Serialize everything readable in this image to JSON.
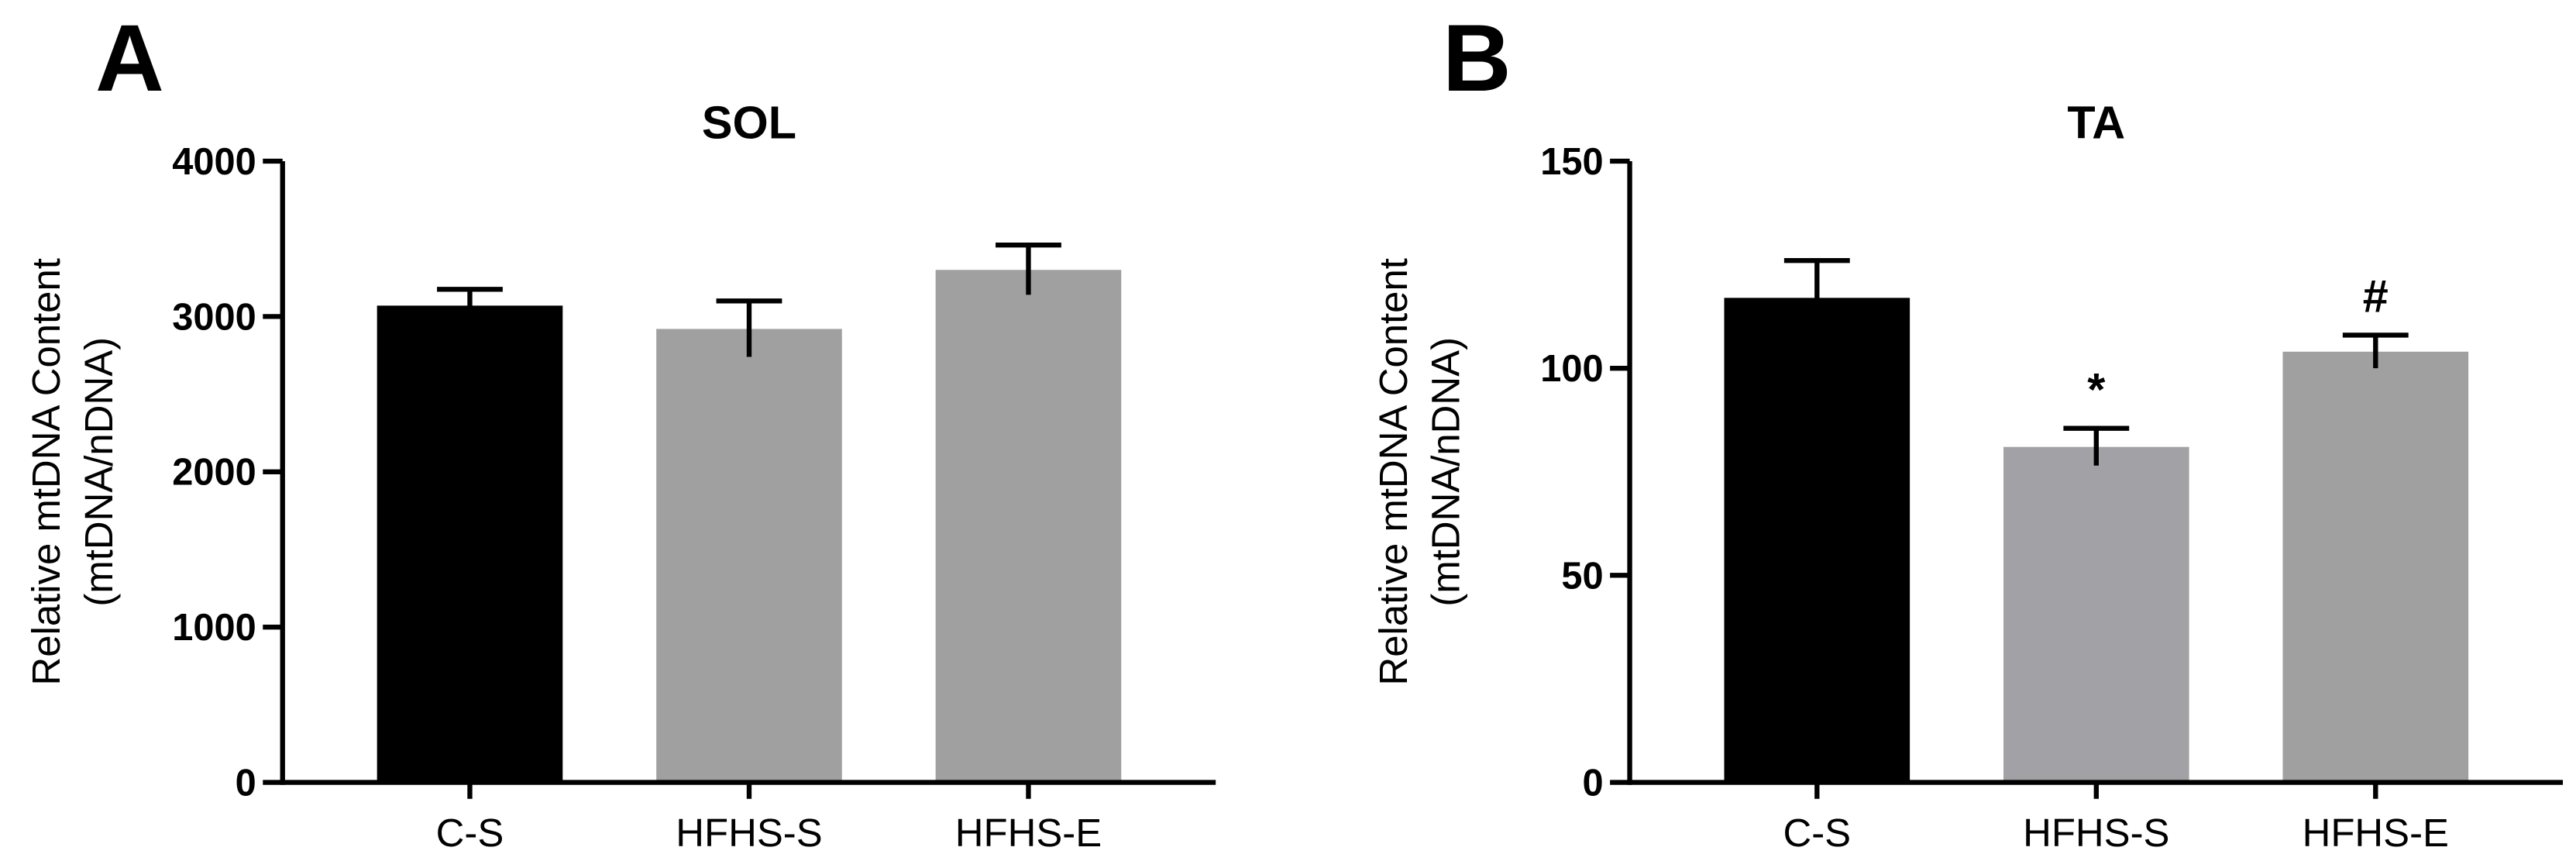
{
  "chart_data": [
    {
      "type": "bar",
      "panel": "A",
      "title": "SOL",
      "ylabel": [
        "Relative mtDNA Content",
        "(mtDNA/nDNA)"
      ],
      "categories": [
        "C-S",
        "HFHS-S",
        "HFHS-E"
      ],
      "values": [
        3070,
        2920,
        3300
      ],
      "errors": [
        105,
        180,
        160
      ],
      "colors": [
        "#000000",
        "#a0a0a0",
        "#a0a0a0"
      ],
      "ylim": [
        0,
        4000
      ],
      "yticks": [
        0,
        1000,
        2000,
        3000,
        4000
      ]
    },
    {
      "type": "bar",
      "panel": "B",
      "title": "TA",
      "ylabel": [
        "Relative mtDNA Content",
        "(mtDNA/nDNA)"
      ],
      "categories": [
        "C-S",
        "HFHS-S",
        "HFHS-E"
      ],
      "values": [
        117,
        81,
        104
      ],
      "errors": [
        9,
        4.5,
        4
      ],
      "colors": [
        "#000000",
        "#a2a2a6",
        "#a0a0a0"
      ],
      "annotations": [
        null,
        "*",
        "#"
      ],
      "ylim": [
        0,
        150
      ],
      "yticks": [
        0,
        50,
        100,
        150
      ]
    }
  ]
}
